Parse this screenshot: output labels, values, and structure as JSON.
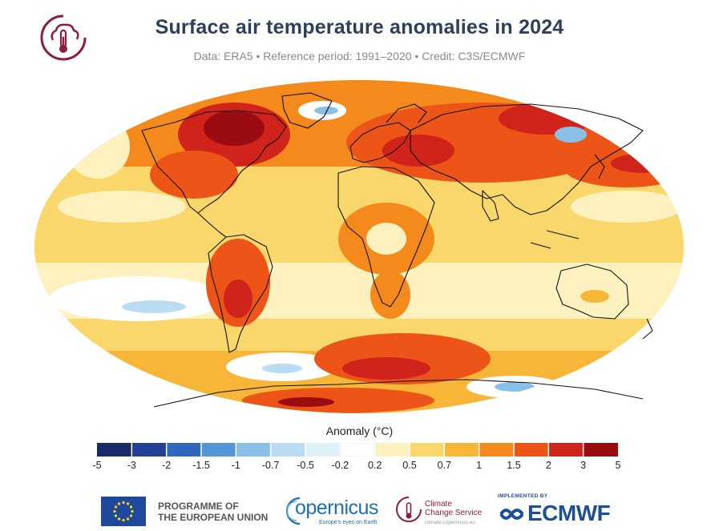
{
  "header": {
    "title": "Surface air temperature anomalies in 2024",
    "subtitle": "Data: ERA5 • Reference period: 1991–2020 • Credit: C3S/ECMWF"
  },
  "legend": {
    "title": "Anomaly (°C)",
    "ticks": [
      "-5",
      "-3",
      "-2",
      "-1.5",
      "-1",
      "-0.7",
      "-0.5",
      "-0.2",
      "0.2",
      "0.5",
      "0.7",
      "1",
      "1.5",
      "2",
      "3",
      "5"
    ],
    "colors": [
      "#1a2a6b",
      "#233f93",
      "#2f68bd",
      "#5196d6",
      "#89c0e8",
      "#b9dcf2",
      "#dff0f8",
      "#ffffff",
      "#fdf2bf",
      "#fad76a",
      "#f7b637",
      "#f58a1c",
      "#ec5418",
      "#d0231b",
      "#9a0b12"
    ]
  },
  "footer": {
    "eu_line1": "PROGRAMME OF",
    "eu_line2": "THE EUROPEAN UNION",
    "copernicus_name": "opernicus",
    "copernicus_tagline": "Europe's eyes on Earth",
    "c3s_line1": "Climate",
    "c3s_line2": "Change Service",
    "c3s_url": "climate.copernicus.eu",
    "implemented_by": "IMPLEMENTED BY",
    "ecmwf_name": "ECMWF"
  },
  "colors": {
    "title": "#2e3f5c",
    "c3s_brand": "#8b1d3e",
    "copernicus_brand": "#1c6eb5",
    "ecmwf_brand": "#1c4f94",
    "eu_flag": "#1f4a9c"
  }
}
